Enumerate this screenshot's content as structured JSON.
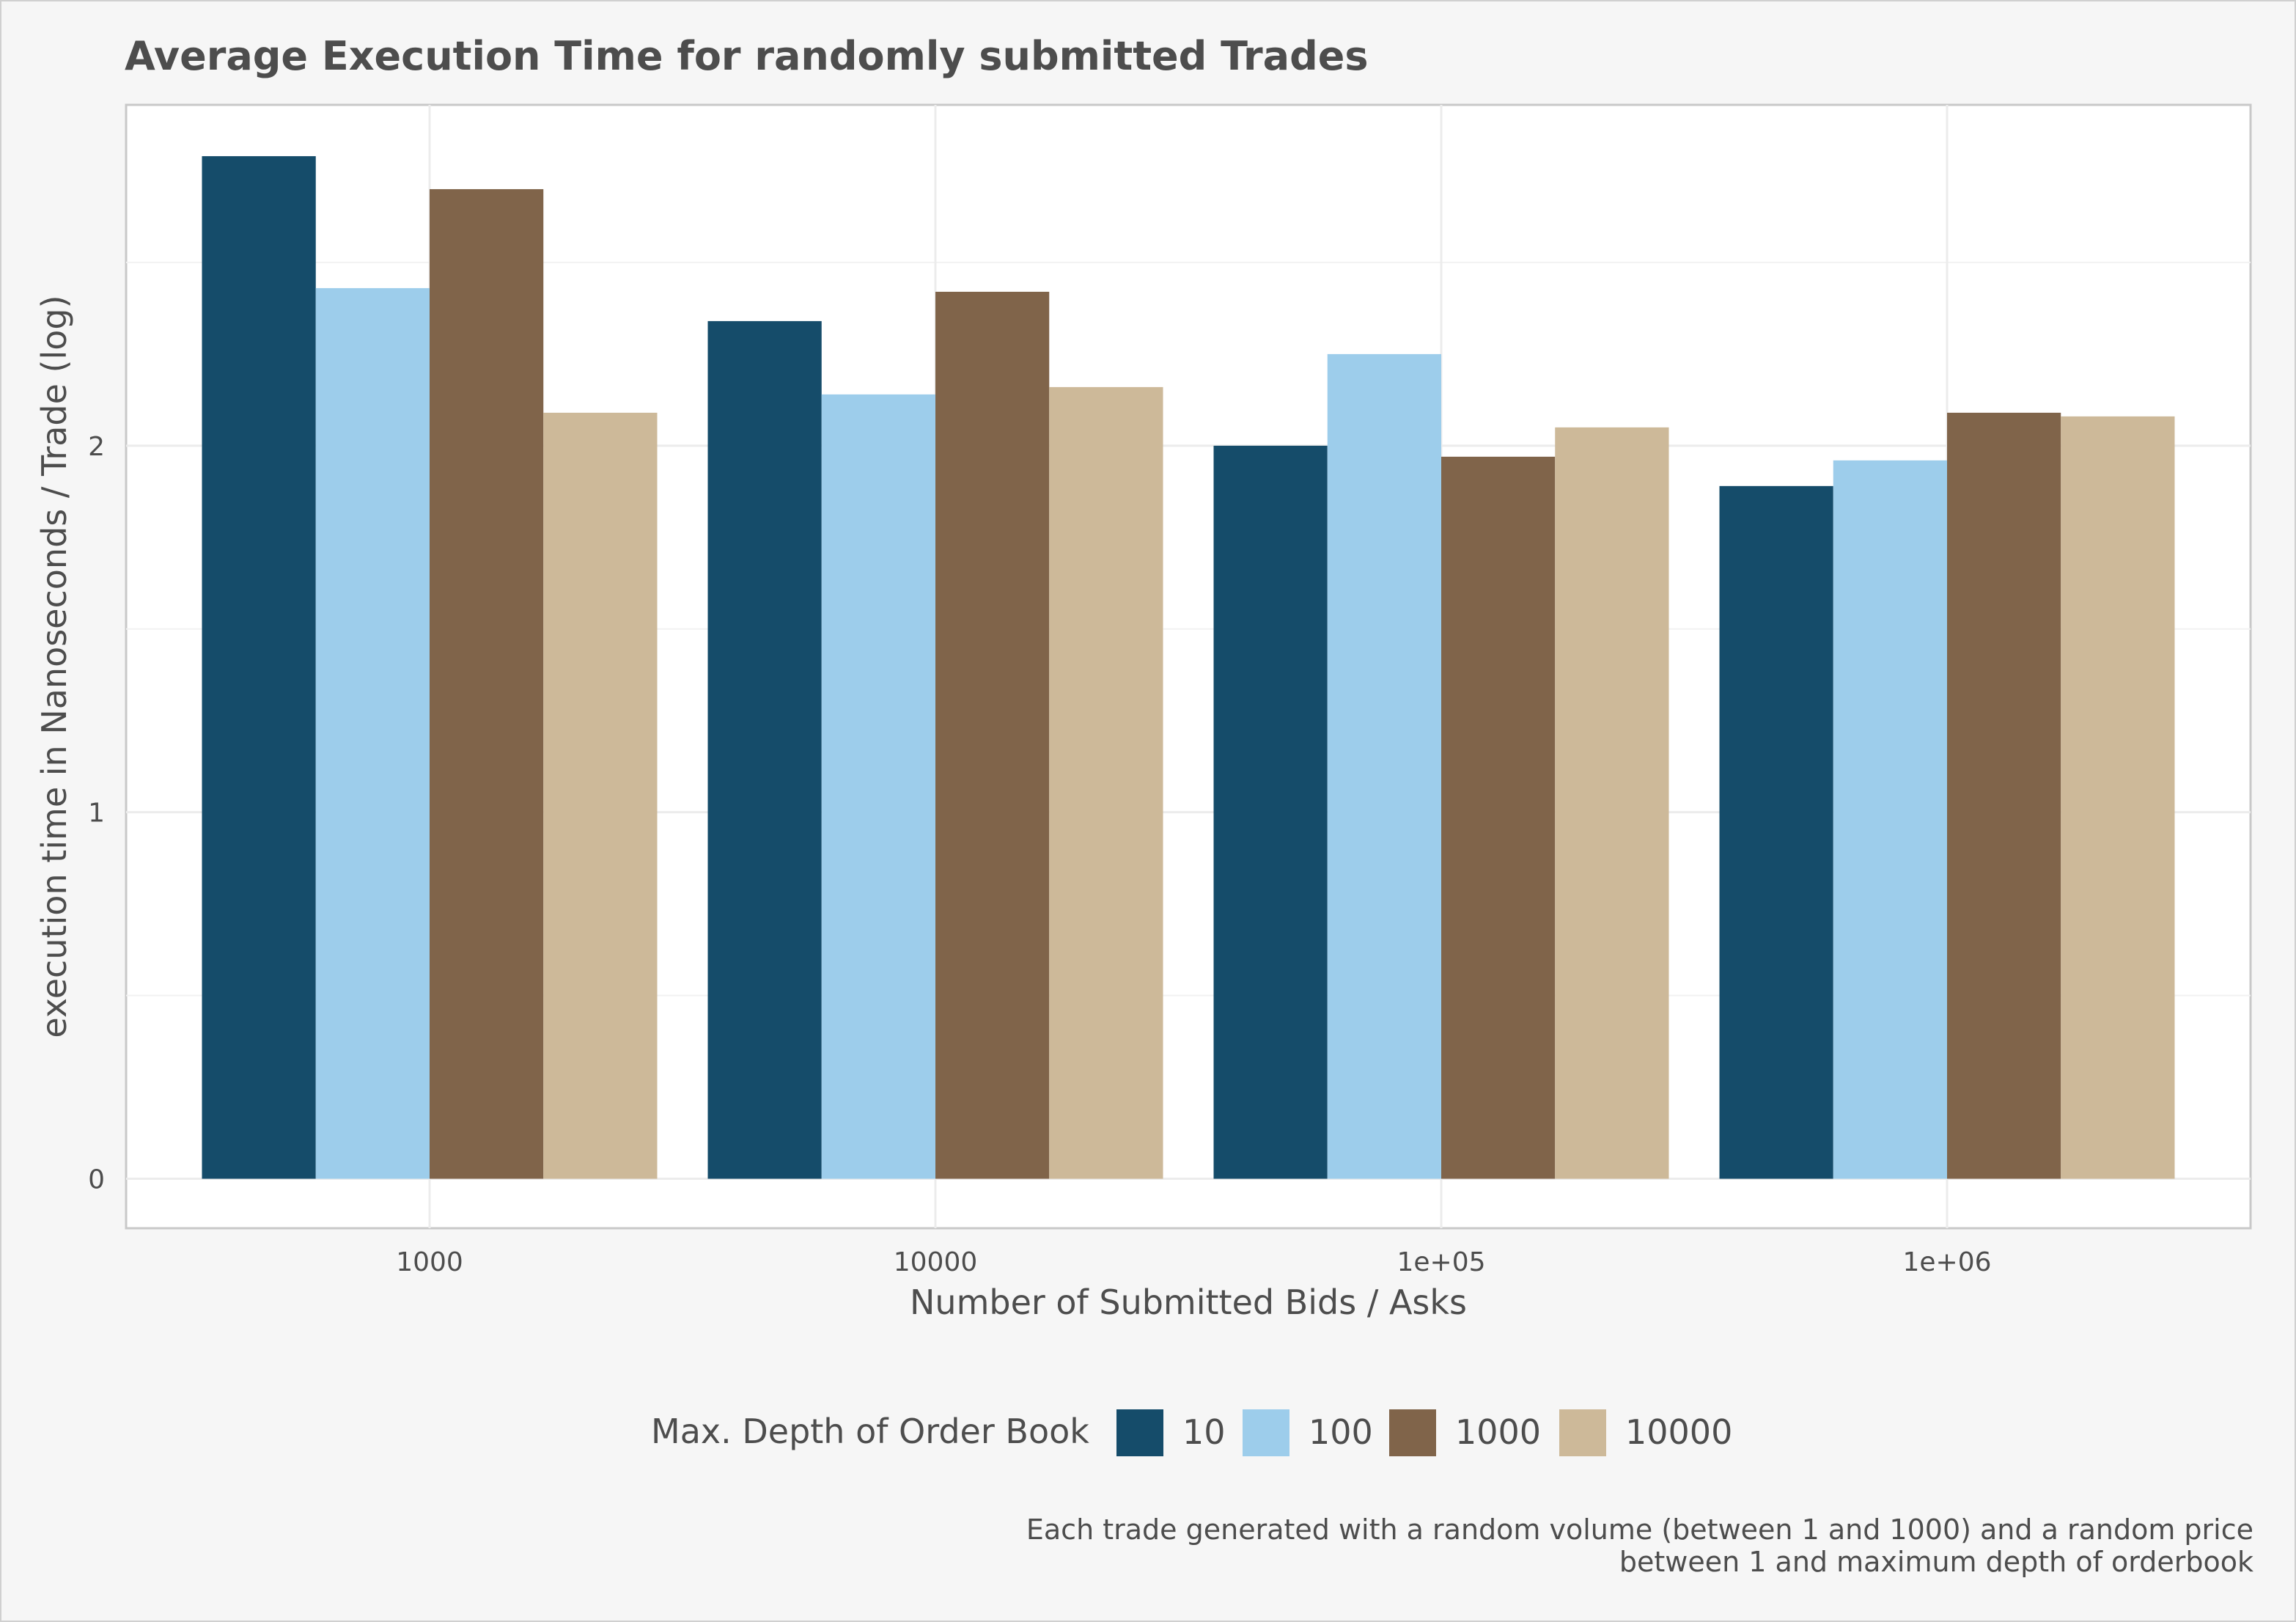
{
  "chart_data": {
    "type": "bar",
    "title": "Average Execution Time for randomly submitted Trades",
    "xlabel": "Number of Submitted Bids / Asks",
    "ylabel": "execution time in Nanoseconds / Trade (log)",
    "categories": [
      "1000",
      "10000",
      "1e+05",
      "1e+06"
    ],
    "y_ticks": [
      0,
      1,
      2
    ],
    "ylim": [
      -0.135,
      2.93
    ],
    "y_scale": "log",
    "grid": true,
    "legend_title": "Max. Depth of Order Book",
    "legend_position": "bottom",
    "series": [
      {
        "name": "10",
        "color": "#154c6a",
        "values": [
          2.79,
          2.34,
          2.0,
          1.89
        ]
      },
      {
        "name": "100",
        "color": "#9dcdeb",
        "values": [
          2.43,
          2.14,
          2.25,
          1.96
        ]
      },
      {
        "name": "1000",
        "color": "#80644a",
        "values": [
          2.7,
          2.42,
          1.97,
          2.09
        ]
      },
      {
        "name": "10000",
        "color": "#cdb999",
        "values": [
          2.09,
          2.16,
          2.05,
          2.08
        ]
      }
    ],
    "caption": [
      "Each trade generated with a random volume (between 1 and 1000) and a random price",
      "between 1 and maximum depth of orderbook"
    ]
  }
}
